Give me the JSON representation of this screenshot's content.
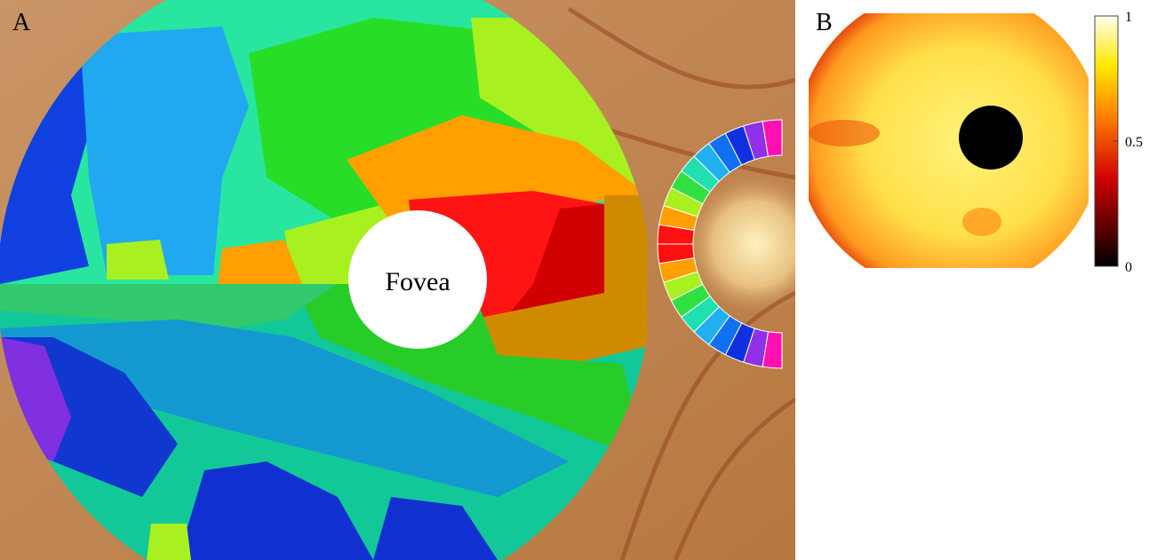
{
  "panel_a": {
    "label": "A",
    "fovea_label": "Fovea"
  },
  "panel_b": {
    "label": "B",
    "colorbar": {
      "lim": [
        0,
        1
      ],
      "ticks": [
        0,
        0.5,
        1
      ]
    }
  }
}
